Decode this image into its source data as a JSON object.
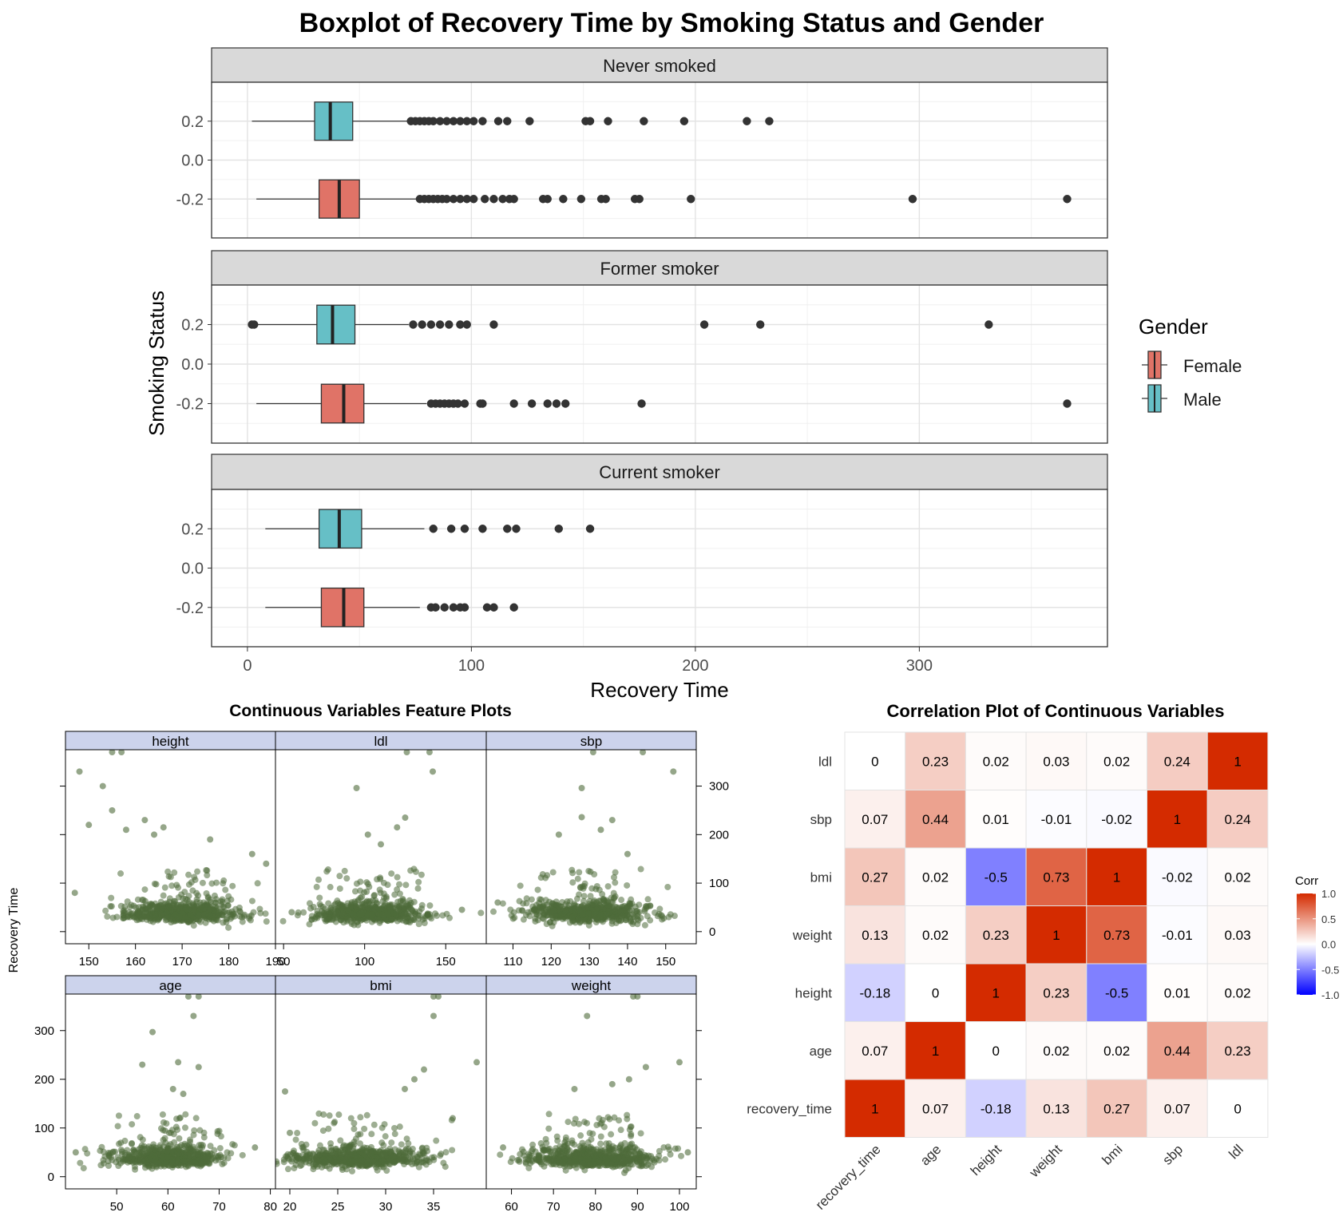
{
  "chart_data": [
    {
      "type": "boxplot",
      "title": "Boxplot of Recovery Time by Smoking Status and Gender",
      "xlabel": "Recovery Time",
      "ylabel": "Smoking Status",
      "xlim": [
        -16,
        384
      ],
      "ylim": [
        -0.4,
        0.4
      ],
      "x_ticks": [
        0,
        100,
        200,
        300
      ],
      "y_ticks": [
        0.2,
        0.0,
        -0.2
      ],
      "y_tick_labels": [
        "0.2",
        "0.0",
        "-0.2"
      ],
      "grid": true,
      "legend": {
        "title": "Gender",
        "position": "right",
        "entries": [
          {
            "name": "Female",
            "color": "#E07367"
          },
          {
            "name": "Male",
            "color": "#66BFC6"
          }
        ]
      },
      "panels": [
        {
          "label": "Never smoked",
          "boxes": [
            {
              "gender": "Male",
              "y": 0.2,
              "whisker_low": 2,
              "q1": 30,
              "median": 37,
              "q3": 47,
              "whisker_high": 73,
              "outliers": [
                73,
                75,
                77,
                79,
                81,
                83,
                86,
                89,
                92,
                95,
                98,
                101,
                105,
                112,
                116,
                126,
                151,
                153,
                161,
                177,
                195,
                223,
                233
              ]
            },
            {
              "gender": "Female",
              "y": -0.2,
              "whisker_low": 4,
              "q1": 32,
              "median": 41,
              "q3": 50,
              "whisker_high": 77,
              "outliers": [
                77,
                79,
                81,
                83,
                85,
                87,
                89,
                92,
                95,
                98,
                101,
                106,
                110,
                114,
                117,
                119,
                132,
                134,
                141,
                149,
                158,
                160,
                173,
                175,
                198,
                297,
                366
              ]
            }
          ]
        },
        {
          "label": "Former smoker",
          "boxes": [
            {
              "gender": "Male",
              "y": 0.2,
              "whisker_low": 3,
              "q1": 31,
              "median": 38,
              "q3": 48,
              "whisker_high": 72,
              "outliers": [
                2,
                3,
                74,
                78,
                82,
                86,
                90,
                95,
                98,
                110,
                204,
                229,
                331
              ]
            },
            {
              "gender": "Female",
              "y": -0.2,
              "whisker_low": 4,
              "q1": 33,
              "median": 43,
              "q3": 52,
              "whisker_high": 80,
              "outliers": [
                82,
                84,
                86,
                88,
                90,
                92,
                94,
                97,
                104,
                105,
                119,
                127,
                134,
                138,
                142,
                176,
                366
              ]
            }
          ]
        },
        {
          "label": "Current smoker",
          "boxes": [
            {
              "gender": "Male",
              "y": 0.2,
              "whisker_low": 8,
              "q1": 32,
              "median": 41,
              "q3": 51,
              "whisker_high": 79,
              "outliers": [
                83,
                91,
                97,
                105,
                116,
                120,
                139,
                153
              ]
            },
            {
              "gender": "Female",
              "y": -0.2,
              "whisker_low": 8,
              "q1": 33,
              "median": 43,
              "q3": 52,
              "whisker_high": 77,
              "outliers": [
                82,
                84,
                88,
                92,
                95,
                97,
                107,
                110,
                119
              ]
            }
          ]
        }
      ]
    },
    {
      "type": "scatter",
      "title": "Continuous Variables Feature Plots",
      "ylabel": "Recovery Time",
      "ylim": [
        -25,
        375
      ],
      "y_ticks": [
        0,
        100,
        200,
        300
      ],
      "point_color": "#4F6B3A",
      "panels": [
        {
          "label": "height",
          "xlim": [
            145,
            190
          ],
          "x_ticks": [
            150,
            160,
            170,
            180,
            190
          ],
          "center": [
            170,
            37
          ],
          "spread": [
            6,
            12
          ],
          "n": 650,
          "row": 0,
          "extras": [
            [
              148,
              330
            ],
            [
              153,
              300
            ],
            [
              155,
              370
            ],
            [
              157,
              370
            ],
            [
              155,
              250
            ],
            [
              150,
              220
            ],
            [
              158,
              210
            ],
            [
              162,
              230
            ],
            [
              166,
              215
            ],
            [
              164,
              200
            ],
            [
              176,
              190
            ],
            [
              185,
              160
            ],
            [
              188,
              140
            ],
            [
              147,
              80
            ]
          ]
        },
        {
          "label": "ldl",
          "xlim": [
            45,
            175
          ],
          "x_ticks": [
            50,
            100,
            150
          ],
          "center": [
            103,
            37
          ],
          "spread": [
            18,
            12
          ],
          "n": 650,
          "row": 0,
          "extras": [
            [
              95,
              296
            ],
            [
              126,
              370
            ],
            [
              140,
              370
            ],
            [
              142,
              330
            ],
            [
              125,
              235
            ],
            [
              102,
              200
            ],
            [
              120,
              215
            ],
            [
              110,
              180
            ],
            [
              55,
              40
            ],
            [
              160,
              45
            ]
          ]
        },
        {
          "label": "sbp",
          "xlim": [
            103,
            158
          ],
          "x_ticks": [
            110,
            120,
            130,
            140,
            150
          ],
          "center": [
            130,
            37
          ],
          "spread": [
            8,
            12
          ],
          "n": 650,
          "row": 0,
          "extras": [
            [
              131,
              370
            ],
            [
              144,
              370
            ],
            [
              152,
              330
            ],
            [
              128,
              296
            ],
            [
              128,
              236
            ],
            [
              136,
              230
            ],
            [
              133,
              210
            ],
            [
              122,
              200
            ],
            [
              140,
              160
            ],
            [
              106,
              60
            ]
          ]
        },
        {
          "label": "age",
          "xlim": [
            40,
            81
          ],
          "x_ticks": [
            50,
            60,
            70,
            80
          ],
          "center": [
            60,
            37
          ],
          "spread": [
            5,
            12
          ],
          "n": 650,
          "row": 1,
          "extras": [
            [
              64,
              370
            ],
            [
              66,
              370
            ],
            [
              65,
              330
            ],
            [
              57,
              297
            ],
            [
              55,
              230
            ],
            [
              62,
              235
            ],
            [
              66,
              225
            ],
            [
              61,
              180
            ],
            [
              63,
              170
            ],
            [
              42,
              50
            ],
            [
              77,
              60
            ]
          ]
        },
        {
          "label": "bmi",
          "xlim": [
            18.5,
            40.5
          ],
          "x_ticks": [
            20,
            25,
            30,
            35
          ],
          "center": [
            27,
            37
          ],
          "spread": [
            3.6,
            12
          ],
          "n": 650,
          "row": 1,
          "extras": [
            [
              35,
              370
            ],
            [
              35.5,
              370
            ],
            [
              35,
              330
            ],
            [
              39.5,
              235
            ],
            [
              34,
              220
            ],
            [
              33,
              200
            ],
            [
              32,
              180
            ],
            [
              19.5,
              175
            ],
            [
              37,
              120
            ],
            [
              20,
              90
            ]
          ]
        },
        {
          "label": "weight",
          "xlim": [
            54,
            104
          ],
          "x_ticks": [
            60,
            70,
            80,
            90,
            100
          ],
          "center": [
            79,
            37
          ],
          "spread": [
            8,
            12
          ],
          "n": 650,
          "row": 1,
          "extras": [
            [
              89,
              370
            ],
            [
              90,
              370
            ],
            [
              78,
              330
            ],
            [
              100,
              235
            ],
            [
              92,
              225
            ],
            [
              88,
              200
            ],
            [
              84,
              190
            ],
            [
              75,
              180
            ],
            [
              58,
              60
            ],
            [
              102,
              50
            ]
          ]
        }
      ]
    },
    {
      "type": "heatmap",
      "title": "Correlation Plot of Continuous Variables",
      "variables": [
        "recovery_time",
        "age",
        "height",
        "weight",
        "bmi",
        "sbp",
        "ldl"
      ],
      "y_order_top_to_bottom": [
        "ldl",
        "sbp",
        "bmi",
        "weight",
        "height",
        "age",
        "recovery_time"
      ],
      "values": [
        [
          1,
          0.07,
          -0.18,
          0.13,
          0.27,
          0.07,
          0
        ],
        [
          0.07,
          1,
          0,
          0.02,
          0.02,
          0.44,
          0.23
        ],
        [
          -0.18,
          0,
          1,
          0.23,
          -0.5,
          0.01,
          0.02
        ],
        [
          0.13,
          0.02,
          0.23,
          1,
          0.73,
          -0.01,
          0.03
        ],
        [
          0.27,
          0.02,
          -0.5,
          0.73,
          1,
          -0.02,
          0.02
        ],
        [
          0.07,
          0.44,
          0.01,
          -0.01,
          -0.02,
          1,
          0.24
        ],
        [
          0,
          0.23,
          0.02,
          0.03,
          0.02,
          0.24,
          1
        ]
      ],
      "legend": {
        "title": "Corr",
        "position": "right",
        "ticks": [
          1.0,
          0.5,
          0.0,
          -0.5,
          -1.0
        ],
        "tick_labels": [
          "1.0",
          "0.5",
          "0.0",
          "-0.5",
          "-1.0"
        ]
      },
      "colors": {
        "low": "#0000FF",
        "mid": "#FFFFFF",
        "high": "#D42B00"
      }
    }
  ],
  "colors": {
    "female": "#E07367",
    "male": "#66BFC6",
    "strip_bg": "#D9D9D9",
    "lattice_strip": "#CCD3EC",
    "point": "#4F6B3A",
    "outlier": "#333333"
  }
}
